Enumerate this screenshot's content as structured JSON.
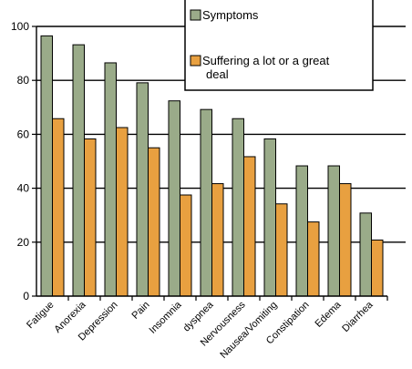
{
  "chart_data": {
    "type": "bar",
    "categories": [
      "Fatigue",
      "Anorexia",
      "Depression",
      "Pain",
      "Insomnia",
      "dyspnea",
      "Nervousness",
      "Nausea/Vomiting",
      "Constipation",
      "Edema",
      "Diarrhea"
    ],
    "category_labels": [
      "Fatigue",
      "Anorexia",
      "Depression",
      "Pain",
      "Insomnia",
      "dyspnea",
      "Nervousness",
      "Nausea/Vomiting",
      "Constipation",
      "Edema",
      "Diarrhea"
    ],
    "series": [
      {
        "name": "Symptoms",
        "color": "#9aab89",
        "values": [
          96.5,
          93.2,
          86.5,
          79.1,
          72.4,
          69.2,
          65.8,
          58.3,
          48.3,
          48.3,
          30.8
        ]
      },
      {
        "name": "Suffering a lot or a great deal",
        "color": "#e8a040",
        "values": [
          65.8,
          58.3,
          62.5,
          55.0,
          37.5,
          41.7,
          51.7,
          34.2,
          27.5,
          41.7,
          20.8
        ]
      }
    ],
    "ylim": [
      0,
      100
    ],
    "yticks": [
      0,
      20,
      40,
      60,
      80,
      100
    ],
    "xlabel": "",
    "ylabel": "",
    "grid": "horizontal",
    "legend_position": "top-right"
  }
}
